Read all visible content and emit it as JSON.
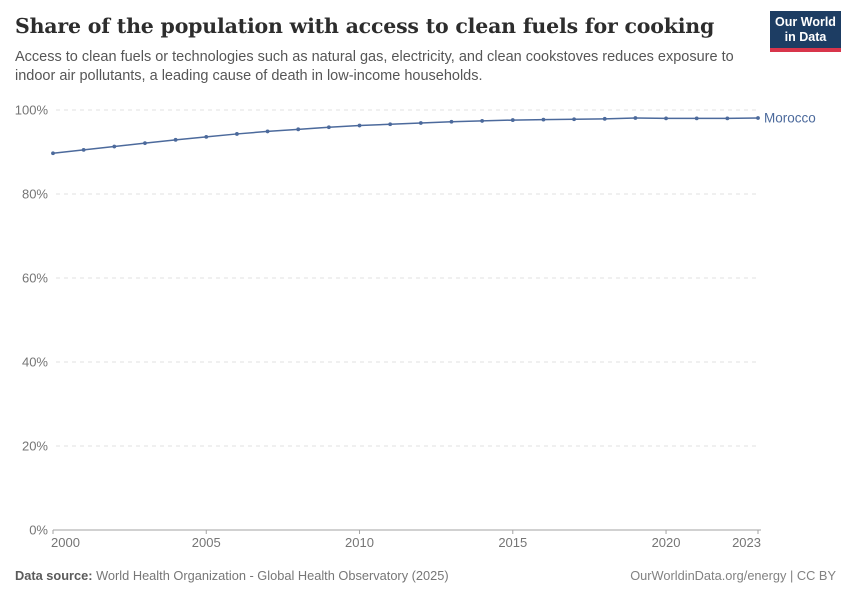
{
  "header": {
    "title": "Share of the population with access to clean fuels for cooking",
    "subtitle": "Access to clean fuels or technologies such as natural gas, electricity, and clean cookstoves reduces exposure to indoor air pollutants, a leading cause of death in low-income households."
  },
  "logo": {
    "line1": "Our World",
    "line2": "in Data",
    "background": "#1d3d63",
    "accent": "#d8354b"
  },
  "chart_data": {
    "type": "line",
    "title": "Share of the population with access to clean fuels for cooking",
    "entity": "Morocco",
    "x": [
      2000,
      2001,
      2002,
      2003,
      2004,
      2005,
      2006,
      2007,
      2008,
      2009,
      2010,
      2011,
      2012,
      2013,
      2014,
      2015,
      2016,
      2017,
      2018,
      2019,
      2020,
      2021,
      2022,
      2023
    ],
    "series": [
      {
        "name": "Morocco",
        "color": "#4c6a9c",
        "values": [
          89.7,
          90.5,
          91.3,
          92.1,
          92.9,
          93.6,
          94.3,
          94.9,
          95.4,
          95.9,
          96.3,
          96.6,
          96.9,
          97.2,
          97.4,
          97.6,
          97.7,
          97.8,
          97.9,
          98.1,
          98.0,
          98.0,
          98.0,
          98.1
        ]
      }
    ],
    "xlabel": "",
    "ylabel": "",
    "ylim": [
      0,
      100
    ],
    "xlim": [
      2000,
      2023
    ],
    "yticks": [
      {
        "value": 0,
        "label": "0%"
      },
      {
        "value": 20,
        "label": "20%"
      },
      {
        "value": 40,
        "label": "40%"
      },
      {
        "value": 60,
        "label": "60%"
      },
      {
        "value": 80,
        "label": "80%"
      },
      {
        "value": 100,
        "label": "100%"
      }
    ],
    "xticks": [
      {
        "value": 2000,
        "label": "2000"
      },
      {
        "value": 2005,
        "label": "2005"
      },
      {
        "value": 2010,
        "label": "2010"
      },
      {
        "value": 2015,
        "label": "2015"
      },
      {
        "value": 2020,
        "label": "2020"
      },
      {
        "value": 2023,
        "label": "2023"
      }
    ],
    "grid": "horizontal-dashed",
    "legend": "line-end-label"
  },
  "footer": {
    "datasource_label": "Data source:",
    "datasource_value": " World Health Organization - Global Health Observatory (2025)",
    "credit": "OurWorldinData.org/energy | CC BY"
  },
  "colors": {
    "series": "#4c6a9c",
    "gridline": "#e0e0e0",
    "axis": "#a3a3a3",
    "tick_label": "#757575",
    "title": "#2d2d2d",
    "subtitle": "#565656"
  }
}
